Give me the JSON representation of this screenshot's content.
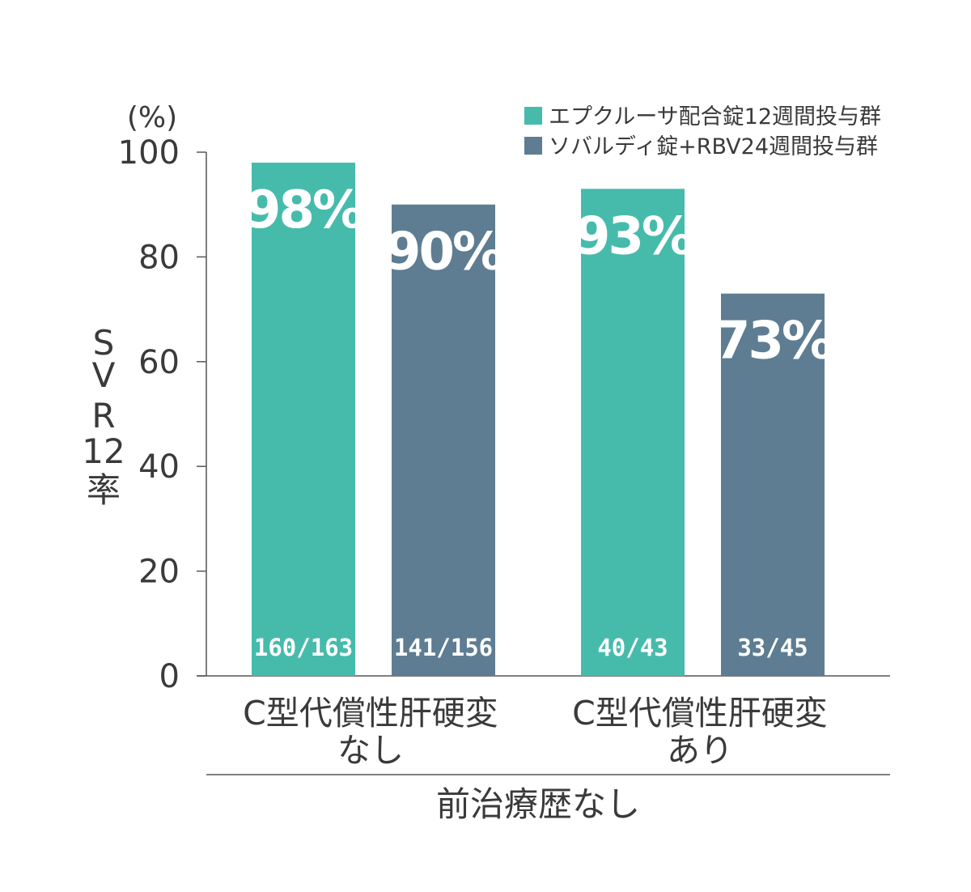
{
  "chart_data": {
    "type": "bar",
    "unit_label": "(%)",
    "ylabel_chars": [
      "S",
      "V",
      "R",
      "12",
      "率"
    ],
    "ylim": [
      0,
      100
    ],
    "yticks": [
      "0",
      "20",
      "40",
      "60",
      "80",
      "100"
    ],
    "categories": [
      [
        "C型代償性肝硬変",
        "なし"
      ],
      [
        "C型代償性肝硬変",
        "あり"
      ]
    ],
    "group_label": "前治療歴なし",
    "series": [
      {
        "name": "エプクルーサ配合錠12週間投与群",
        "color": "#47bbab",
        "values": [
          98,
          93
        ],
        "value_labels": [
          "98%",
          "93%"
        ],
        "counts": [
          "160/163",
          "40/43"
        ]
      },
      {
        "name": "ソバルディ錠+RBV24週間投与群",
        "color": "#5e7d92",
        "values": [
          90,
          73
        ],
        "value_labels": [
          "90%",
          "73%"
        ],
        "counts": [
          "141/156",
          "33/45"
        ]
      }
    ],
    "legend_position": "top-right",
    "grid": false
  }
}
